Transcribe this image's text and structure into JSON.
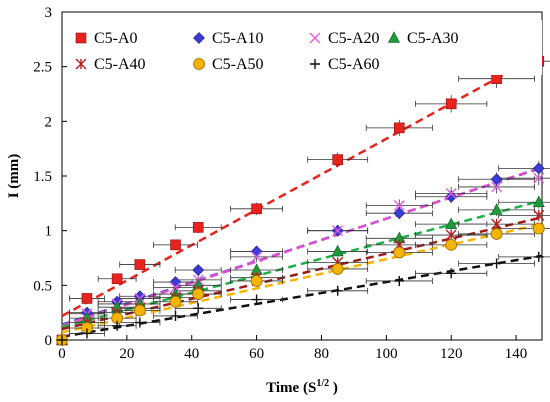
{
  "chart_data": {
    "type": "scatter",
    "title": "",
    "xlabel": "Time (S",
    "xlabel_sup": "1/2",
    "xlabel_close": " )",
    "ylabel": "I (mm)",
    "xlim": [
      0,
      148
    ],
    "ylim": [
      0,
      3
    ],
    "x_ticks": [
      0,
      20,
      40,
      60,
      80,
      100,
      120,
      140
    ],
    "y_ticks": [
      0,
      0.5,
      1,
      1.5,
      2,
      2.5,
      3
    ],
    "x_tick_labels": [
      "0",
      "20",
      "40",
      "60",
      "80",
      "100",
      "120",
      "140"
    ],
    "y_tick_labels": [
      "0",
      "0.5",
      "1",
      "1.5",
      "2",
      "2.5",
      "3"
    ],
    "grid": false,
    "legend_position": "top-left",
    "error_bars": true,
    "trendlines": "dashed linear fits",
    "x": [
      0,
      7.7,
      17,
      24,
      35,
      42,
      60,
      85,
      104,
      120,
      134,
      147
    ],
    "series": [
      {
        "name": "C5-A0",
        "marker": "square",
        "color": "#e8231e",
        "trend_color": "#e8231e",
        "values": [
          0,
          0.38,
          0.56,
          0.69,
          0.87,
          1.03,
          1.2,
          1.65,
          1.94,
          2.16,
          2.39,
          2.55
        ],
        "fit": [
          0.22,
          0.0162
        ]
      },
      {
        "name": "C5-A10",
        "marker": "diamond",
        "color": "#3b3bd6",
        "trend_color": "#4040c0",
        "values": [
          0,
          0.25,
          0.35,
          0.4,
          0.53,
          0.64,
          0.81,
          1.0,
          1.16,
          1.31,
          1.47,
          1.57
        ],
        "fit": [
          0.14,
          0.0097
        ]
      },
      {
        "name": "C5-A20",
        "marker": "x",
        "color": "#e45be8",
        "trend_color": "#e24fd0",
        "values": [
          0,
          0.24,
          0.33,
          0.38,
          0.48,
          0.55,
          0.76,
          1.0,
          1.23,
          1.34,
          1.4,
          1.48
        ],
        "fit": [
          0.13,
          0.0098
        ]
      },
      {
        "name": "C5-A30",
        "marker": "triangle",
        "color": "#1f9a3a",
        "trend_color": "#1fb04a",
        "values": [
          0,
          0.2,
          0.3,
          0.33,
          0.42,
          0.5,
          0.64,
          0.81,
          0.93,
          1.06,
          1.19,
          1.26
        ],
        "fit": [
          0.12,
          0.0078
        ]
      },
      {
        "name": "C5-A40",
        "marker": "asterisk",
        "color": "#b51f1f",
        "trend_color": "#9c1c1c",
        "values": [
          0,
          0.16,
          0.25,
          0.29,
          0.39,
          0.45,
          0.57,
          0.71,
          0.87,
          0.96,
          1.06,
          1.14
        ],
        "fit": [
          0.1,
          0.0069
        ]
      },
      {
        "name": "C5-A50",
        "marker": "circle",
        "color": "#f4b400",
        "trend_color": "#f4b400",
        "values": [
          0,
          0.11,
          0.2,
          0.27,
          0.35,
          0.42,
          0.54,
          0.65,
          0.8,
          0.87,
          0.97,
          1.02
        ],
        "fit": [
          0.07,
          0.0067
        ]
      },
      {
        "name": "C5-A60",
        "marker": "plus",
        "color": "#111111",
        "trend_color": "#111111",
        "values": [
          0,
          0.06,
          0.13,
          0.16,
          0.22,
          0.29,
          0.37,
          0.45,
          0.54,
          0.61,
          0.7,
          0.76
        ],
        "fit": [
          0.03,
          0.005
        ]
      }
    ]
  }
}
